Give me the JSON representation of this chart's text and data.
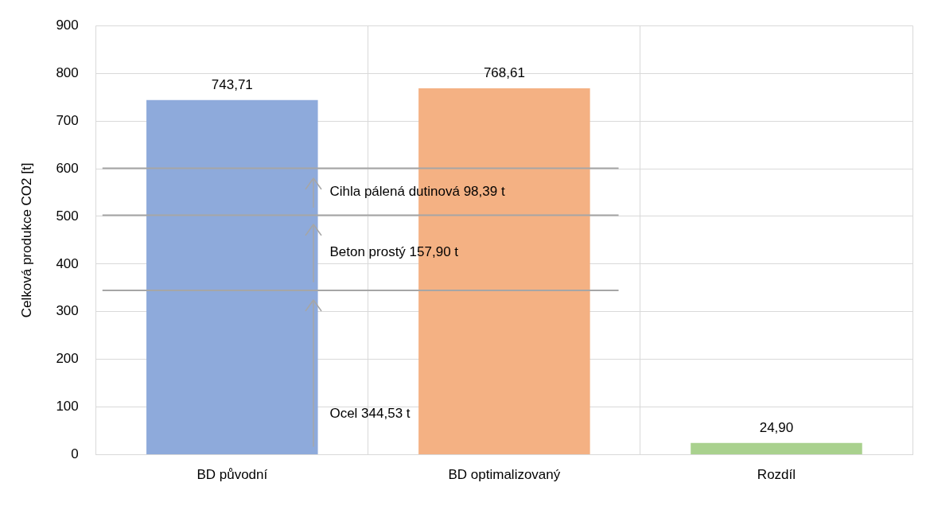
{
  "chart_data": {
    "type": "bar",
    "ylabel": "Celková produkce CO2 [t]",
    "categories": [
      "BD původní",
      "BD optimalizovaný",
      "Rozdíl"
    ],
    "values": [
      743.71,
      768.61,
      24.9
    ],
    "colors": [
      "#8eaadb",
      "#f4b183",
      "#a9d18e"
    ],
    "value_labels": [
      "743,71",
      "768,61",
      "24,90"
    ],
    "ylim": [
      0,
      900
    ],
    "yticks": [
      0,
      100,
      200,
      300,
      400,
      500,
      600,
      700,
      800,
      900
    ],
    "grid": true,
    "ref_lines": [
      {
        "axis": "y",
        "value": 344.53,
        "color": "#a6a6a6"
      },
      {
        "axis": "y",
        "value": 502.43,
        "color": "#a6a6a6"
      },
      {
        "axis": "y",
        "value": 600.82,
        "color": "#a6a6a6"
      }
    ],
    "annotations": [
      "Ocel 344,53 t",
      "Beton prostý 157,90 t",
      "Cihla pálená dutinová 98,39 t"
    ]
  }
}
